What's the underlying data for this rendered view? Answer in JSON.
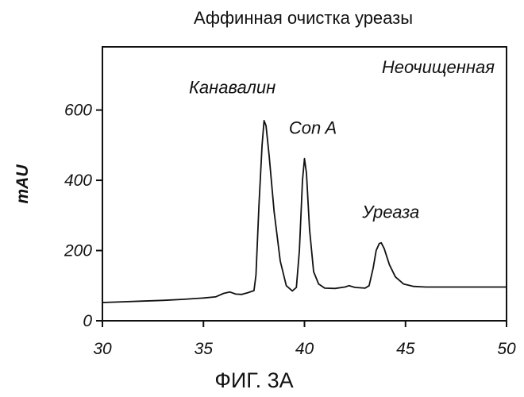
{
  "chart_data": {
    "type": "line",
    "title": "Аффинная очистка уреазы",
    "caption": "ФИГ. 3А",
    "xlabel": "",
    "ylabel": "mAU",
    "xlim": [
      30,
      50
    ],
    "ylim": [
      0,
      780
    ],
    "xticks": [
      30,
      35,
      40,
      45,
      50
    ],
    "yticks": [
      0,
      200,
      400,
      600
    ],
    "grid": false,
    "legend": "none",
    "trace_label": "Неочищенная",
    "annotations": [
      {
        "text": "Канавалин",
        "x": 38.0,
        "y": 575
      },
      {
        "text": "Con A",
        "x": 40.1,
        "y": 465
      },
      {
        "text": "Уреаза",
        "x": 43.8,
        "y": 225
      }
    ],
    "series": [
      {
        "x": [
          30.0,
          31.0,
          32.0,
          33.0,
          34.0,
          35.0,
          35.6,
          36.0,
          36.3,
          36.6,
          36.9,
          37.2,
          37.5,
          37.6,
          37.75,
          37.9,
          38.0,
          38.1,
          38.25,
          38.5,
          38.8,
          39.1,
          39.4,
          39.6,
          39.75,
          39.9,
          40.0,
          40.1,
          40.25,
          40.45,
          40.7,
          41.0,
          41.5,
          42.0,
          42.2,
          42.5,
          43.0,
          43.2,
          43.4,
          43.55,
          43.7,
          43.8,
          43.95,
          44.2,
          44.5,
          44.9,
          45.4,
          46.0,
          47.0,
          48.0,
          49.0,
          50.0
        ],
        "values": [
          52,
          54,
          56,
          58,
          61,
          65,
          68,
          78,
          82,
          76,
          75,
          80,
          86,
          130,
          330,
          500,
          570,
          555,
          470,
          310,
          170,
          100,
          85,
          95,
          200,
          400,
          462,
          420,
          260,
          140,
          105,
          93,
          92,
          96,
          100,
          95,
          93,
          100,
          150,
          200,
          220,
          222,
          205,
          160,
          125,
          105,
          98,
          96,
          96,
          96,
          96,
          96
        ]
      }
    ]
  }
}
